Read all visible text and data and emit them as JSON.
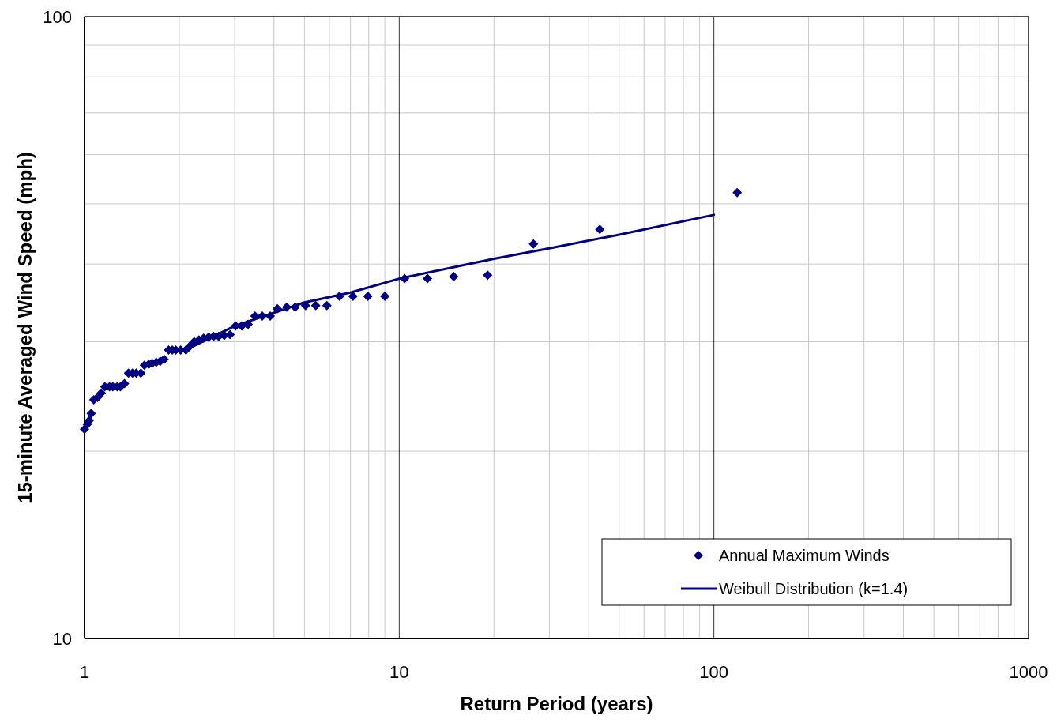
{
  "chart_data": {
    "type": "scatter",
    "xlabel": "Return Period (years)",
    "ylabel": "15-minute Averaged Wind Speed (mph)",
    "log": "xy",
    "xlim": [
      1,
      1000
    ],
    "ylim": [
      10,
      100
    ],
    "xticks": [
      1,
      10,
      100,
      1000
    ],
    "yticks": [
      10,
      100
    ],
    "grid": true,
    "legend": "bottom right",
    "series": [
      {
        "name": "Annual Maximum Winds",
        "marker": "diamond",
        "color": "#000080",
        "x": [
          118.6,
          43.4,
          26.7,
          19.1,
          14.9,
          12.3,
          10.4,
          9.0,
          7.95,
          7.13,
          6.46,
          5.89,
          5.43,
          5.04,
          4.67,
          4.39,
          4.1,
          3.89,
          3.67,
          3.48,
          3.31,
          3.16,
          3.02,
          2.9,
          2.78,
          2.67,
          2.57,
          2.48,
          2.39,
          2.31,
          2.23,
          2.16,
          2.1,
          2.02,
          1.95,
          1.9,
          1.85,
          1.79,
          1.74,
          1.69,
          1.64,
          1.6,
          1.55,
          1.51,
          1.46,
          1.42,
          1.38,
          1.34,
          1.3,
          1.27,
          1.23,
          1.2,
          1.16,
          1.13,
          1.1,
          1.07,
          1.05,
          1.035,
          1.02,
          1.0
        ],
        "values": [
          52.1,
          45.5,
          43.1,
          38.4,
          38.2,
          37.9,
          37.9,
          35.5,
          35.5,
          35.5,
          35.5,
          34.3,
          34.3,
          34.3,
          34.1,
          34.1,
          33.9,
          33.0,
          33.0,
          33.0,
          32.0,
          31.8,
          31.8,
          30.8,
          30.7,
          30.6,
          30.6,
          30.5,
          30.4,
          30.2,
          30.0,
          29.5,
          29.1,
          29.1,
          29.1,
          29.1,
          29.1,
          28.1,
          27.9,
          27.8,
          27.7,
          27.6,
          27.5,
          26.7,
          26.7,
          26.7,
          26.7,
          25.7,
          25.4,
          25.4,
          25.4,
          25.4,
          25.4,
          24.8,
          24.4,
          24.2,
          23.0,
          22.4,
          22.1,
          21.7
        ]
      },
      {
        "name": "Weibull Distribution (k=1.4)",
        "type": "line",
        "marker": "none",
        "line_style": "solid",
        "color": "#000080",
        "x": [
          2.1,
          2.5,
          3,
          5,
          7,
          10,
          20,
          30,
          50,
          100
        ],
        "values": [
          29.1,
          30.4,
          31.8,
          34.7,
          36.0,
          37.9,
          40.8,
          42.4,
          44.6,
          48.0
        ]
      }
    ]
  }
}
